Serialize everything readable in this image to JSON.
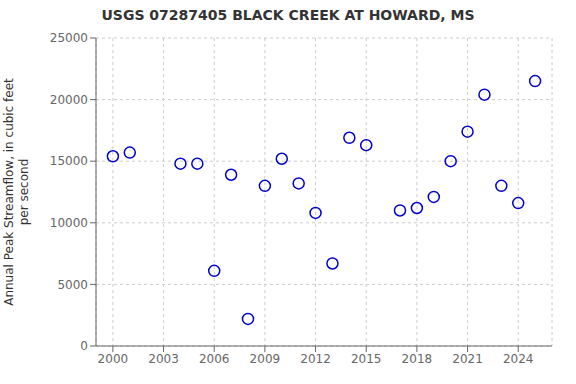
{
  "chart_data": {
    "type": "scatter",
    "title": "USGS 07287405 BLACK CREEK AT HOWARD, MS",
    "ylabel": "Annual Peak Streamflow, in cubic feet\nper second",
    "x": [
      2000,
      2001,
      2004,
      2005,
      2006,
      2007,
      2008,
      2009,
      2010,
      2011,
      2012,
      2013,
      2014,
      2015,
      2017,
      2018,
      2019,
      2020,
      2021,
      2022,
      2023,
      2024,
      2025
    ],
    "values": [
      15400,
      15700,
      14800,
      14800,
      6100,
      13900,
      2200,
      13000,
      15200,
      13200,
      10800,
      6700,
      16900,
      16300,
      11000,
      11200,
      12100,
      15000,
      17400,
      20400,
      13000,
      11600,
      21500
    ],
    "color": "#0000cc",
    "marker": "circle",
    "xlim": [
      1999,
      2026
    ],
    "ylim": [
      0,
      25000
    ],
    "xticks": [
      2000,
      2003,
      2006,
      2009,
      2012,
      2015,
      2018,
      2021,
      2024
    ],
    "yticks": [
      0,
      5000,
      10000,
      15000,
      20000,
      25000
    ],
    "grid": true
  }
}
